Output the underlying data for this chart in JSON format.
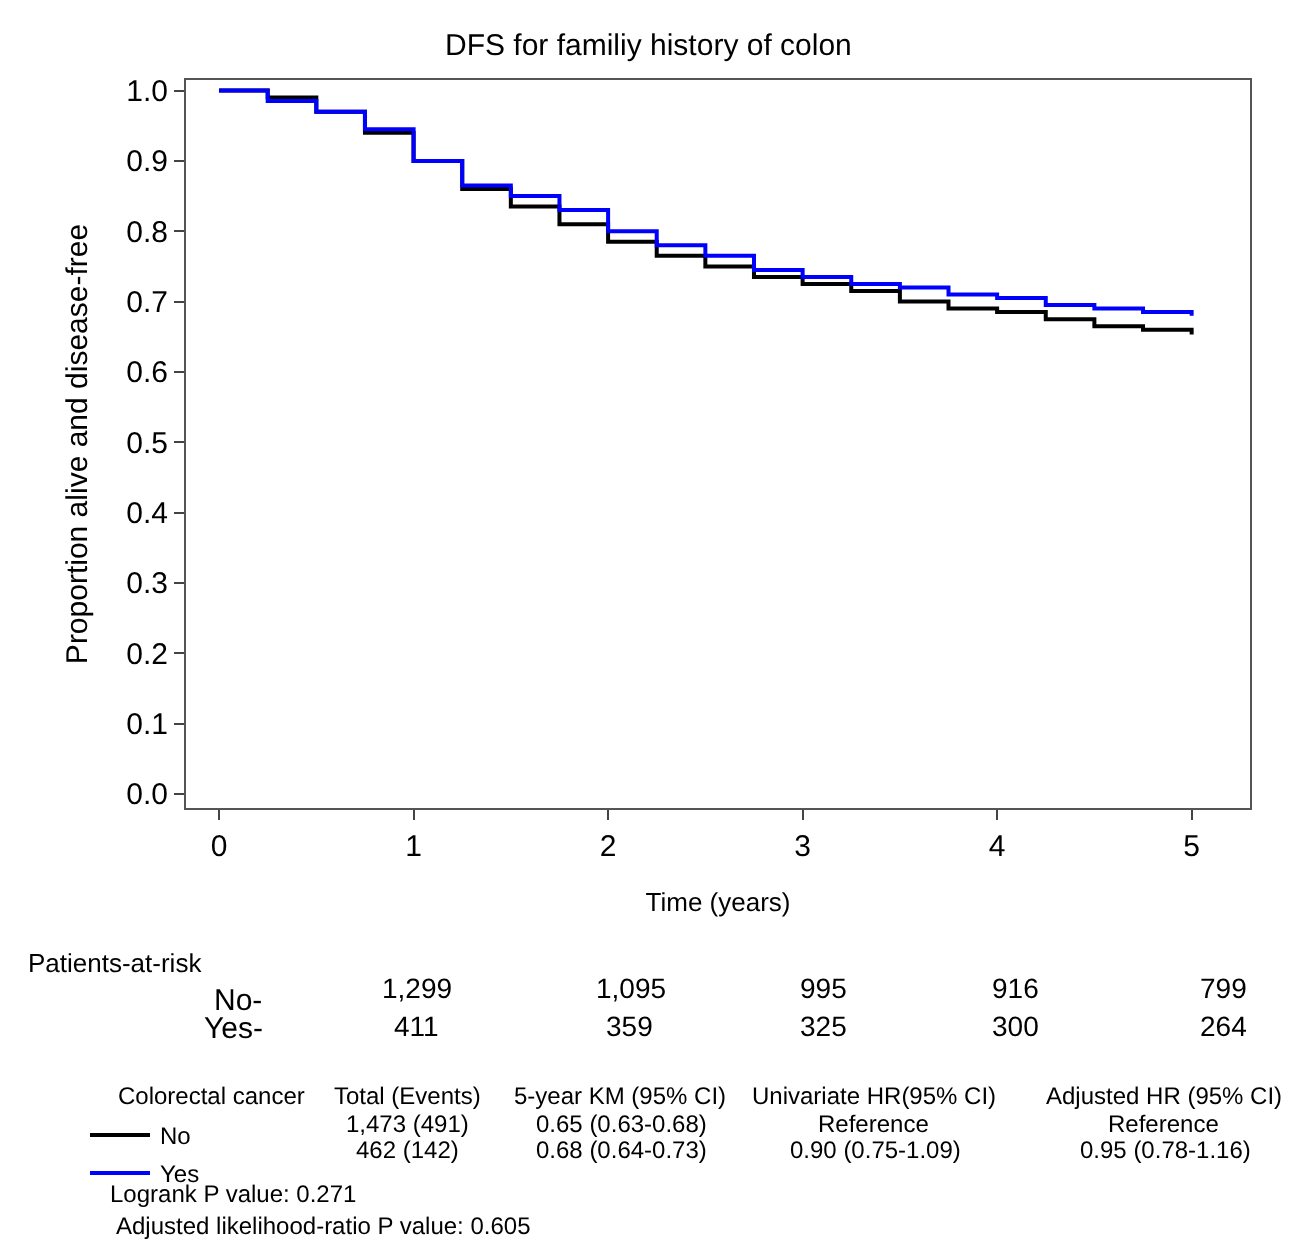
{
  "chart_data": {
    "type": "step",
    "title": "DFS for familiy history of colon",
    "xlabel": "Time (years)",
    "ylabel": "Proportion alive and disease-free",
    "xlim": [
      -0.17,
      5.3
    ],
    "ylim": [
      -0.02,
      1.015
    ],
    "xticks": [
      0,
      1,
      2,
      3,
      4,
      5
    ],
    "yticks": [
      {
        "value": 0,
        "label": "0.0"
      },
      {
        "value": 0.1,
        "label": "0.1"
      },
      {
        "value": 0.2,
        "label": "0.2"
      },
      {
        "value": 0.3,
        "label": "0.3"
      },
      {
        "value": 0.4,
        "label": "0.4"
      },
      {
        "value": 0.5,
        "label": "0.5"
      },
      {
        "value": 0.6,
        "label": "0.6"
      },
      {
        "value": 0.7,
        "label": "0.7"
      },
      {
        "value": 0.8,
        "label": "0.8"
      },
      {
        "value": 0.9,
        "label": "0.9"
      },
      {
        "value": 1,
        "label": "1.0"
      }
    ],
    "legend": "bottom left",
    "series": [
      {
        "name": "No",
        "color": "#000000",
        "x": [
          0,
          0.25,
          0.5,
          0.75,
          1,
          1.25,
          1.5,
          1.75,
          2,
          2.25,
          2.5,
          2.75,
          3,
          3.25,
          3.5,
          3.75,
          4,
          4.25,
          4.5,
          4.75,
          5
        ],
        "values": [
          1.0,
          0.99,
          0.97,
          0.94,
          0.9,
          0.86,
          0.835,
          0.81,
          0.785,
          0.765,
          0.75,
          0.735,
          0.725,
          0.715,
          0.7,
          0.69,
          0.685,
          0.675,
          0.665,
          0.66,
          0.653
        ]
      },
      {
        "name": "Yes",
        "color": "#0000ff",
        "x": [
          0,
          0.25,
          0.5,
          0.75,
          1,
          1.25,
          1.5,
          1.75,
          2,
          2.25,
          2.5,
          2.75,
          3,
          3.25,
          3.5,
          3.75,
          4,
          4.25,
          4.5,
          4.75,
          5
        ],
        "values": [
          1.0,
          0.985,
          0.97,
          0.945,
          0.9,
          0.865,
          0.85,
          0.83,
          0.8,
          0.78,
          0.765,
          0.745,
          0.735,
          0.725,
          0.72,
          0.71,
          0.705,
          0.695,
          0.69,
          0.685,
          0.68
        ]
      }
    ],
    "annotations": [
      "Patients-at-risk",
      "No-",
      "Yes-",
      "1,299",
      "1,095",
      "995",
      "916",
      "799",
      "411",
      "359",
      "325",
      "300",
      "264",
      "Colorectal cancer",
      "Total (Events)",
      "5-year KM (95% CI)",
      "Univariate HR(95% CI)",
      "Adjusted HR (95% CI)",
      "1,473 (491)",
      "0.65 (0.63-0.68)",
      "Reference",
      "Reference",
      "462 (142)",
      "0.68 (0.64-0.73)",
      "0.90 (0.75-1.09)",
      "0.95 (0.78-1.16)",
      "Logrank P value: 0.271",
      "Adjusted likelihood-ratio P value: 0.605"
    ]
  }
}
